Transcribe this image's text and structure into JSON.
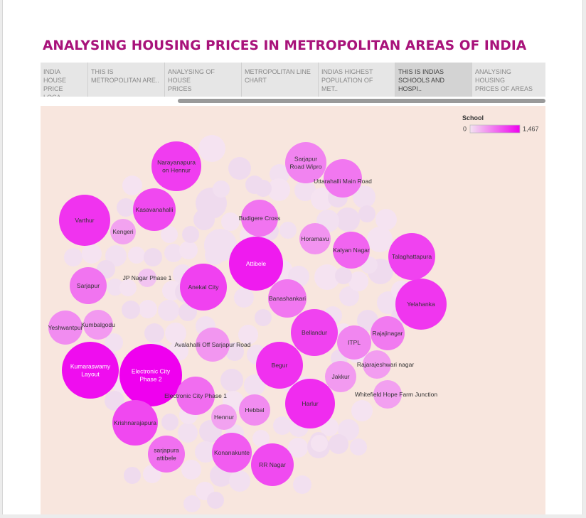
{
  "title": "ANALYSING HOUSING PRICES IN METROPOLITAN AREAS OF INDIA",
  "tabs": [
    {
      "label": "INDIA HOUSE\nPRICE LOCA..",
      "active": false
    },
    {
      "label": "THIS IS\nMETROPOLITAN ARE..",
      "active": false
    },
    {
      "label": "ANALYSING OF HOUSE\nPRICES",
      "active": false
    },
    {
      "label": "METROPOLITAN LINE\nCHART",
      "active": false
    },
    {
      "label": "INDIAS HIGHEST\nPOPULATION OF MET..",
      "active": false
    },
    {
      "label": "THIS IS INDIAS\nSCHOOLS AND HOSPI..",
      "active": true
    },
    {
      "label": "ANALYSING HOUSING\nPRICES OF AREAS",
      "active": false
    }
  ],
  "legend": {
    "title": "School",
    "min_label": "0",
    "max_label": "1,467"
  },
  "colors": {
    "background": "#f8e6de",
    "scale_min": "#f3e3f1",
    "scale_max": "#ef00ef",
    "title": "#a8127a"
  },
  "chart_data": {
    "type": "packed bubble",
    "measure": "School",
    "range": [
      0,
      1467
    ],
    "bubbles": [
      {
        "label": "Electronic City Phase 2",
        "value": 1467
      },
      {
        "label": "Kumaraswamy Layout",
        "value": 1380
      },
      {
        "label": "Attibele",
        "value": 1290
      },
      {
        "label": "Harlur",
        "value": 1180
      },
      {
        "label": "Begur",
        "value": 1150
      },
      {
        "label": "Varthur",
        "value": 1140
      },
      {
        "label": "Yelahanka",
        "value": 1120
      },
      {
        "label": "Narayanapura on Hennur",
        "value": 1080
      },
      {
        "label": "Talaghattapura",
        "value": 1040
      },
      {
        "label": "Bellandur",
        "value": 1040
      },
      {
        "label": "Anekal City",
        "value": 1050
      },
      {
        "label": "Kasavanahalli",
        "value": 1000
      },
      {
        "label": "Krishnarajapura",
        "value": 1000
      },
      {
        "label": "RR Nagar",
        "value": 990
      },
      {
        "label": "Konanakunte",
        "value": 870
      },
      {
        "label": "Kalyan Nagar",
        "value": 820
      },
      {
        "label": "Electronic City Phase 1",
        "value": 760
      },
      {
        "label": "sarjapura attibele",
        "value": 740
      },
      {
        "label": "Budigere Cross",
        "value": 720
      },
      {
        "label": "Sarjapur",
        "value": 720
      },
      {
        "label": "Banashankari",
        "value": 700
      },
      {
        "label": "Uttarahalli Main Road",
        "value": 700
      },
      {
        "label": "Rajajinagar",
        "value": 680
      },
      {
        "label": "Sarjapur Road Wipro",
        "value": 620
      },
      {
        "label": "ITPL",
        "value": 600
      },
      {
        "label": "Yeshwantpur",
        "value": 560
      },
      {
        "label": "Hebbal",
        "value": 560
      },
      {
        "label": "Horamavu",
        "value": 520
      },
      {
        "label": "Avalahalli Off Sarjapur Road",
        "value": 500
      },
      {
        "label": "Kumbalgodu",
        "value": 480
      },
      {
        "label": "Jakkur",
        "value": 470
      },
      {
        "label": "Rajarajeshwari nagar",
        "value": 450
      },
      {
        "label": "Whitefield Hope Farm Junction",
        "value": 430
      },
      {
        "label": "Kengeri",
        "value": 420
      },
      {
        "label": "Hennur",
        "value": 420
      },
      {
        "label": "JP Nagar Phase 1",
        "value": 200
      }
    ]
  }
}
